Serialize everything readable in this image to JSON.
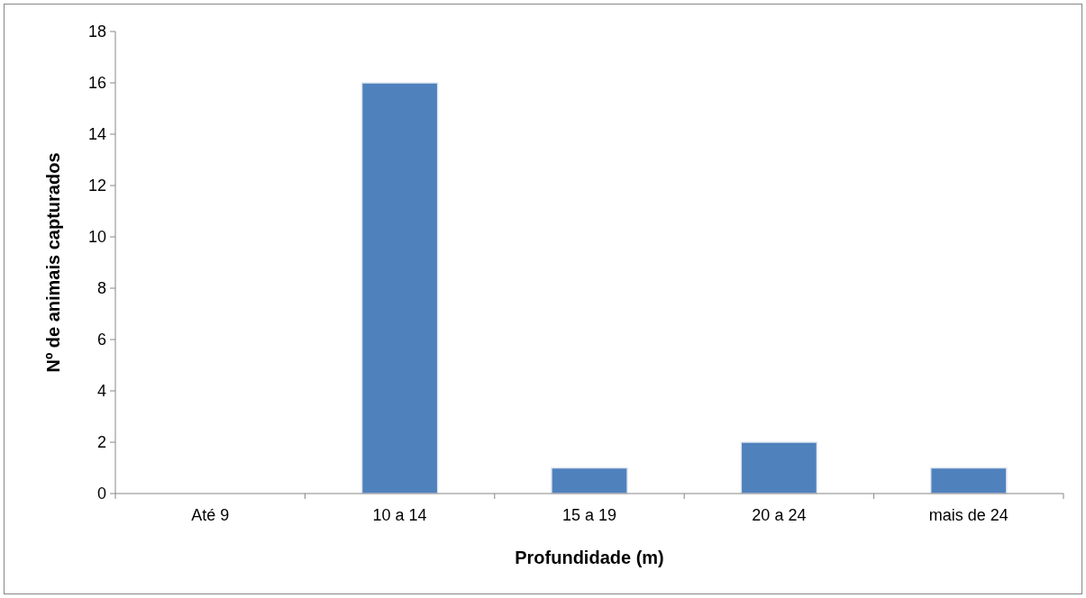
{
  "chart_data": {
    "type": "bar",
    "xlabel": "Profundidade (m)",
    "ylabel": "Nº de animais capturados",
    "categories": [
      "Até 9",
      "10 a 14",
      "15 a 19",
      "20 a 24",
      "mais de 24"
    ],
    "values": [
      0,
      16,
      1,
      2,
      1
    ],
    "color": "#4f81bd",
    "ylim": [
      0,
      18
    ],
    "yticks": [
      0,
      2,
      4,
      6,
      8,
      10,
      12,
      14,
      16,
      18
    ]
  }
}
